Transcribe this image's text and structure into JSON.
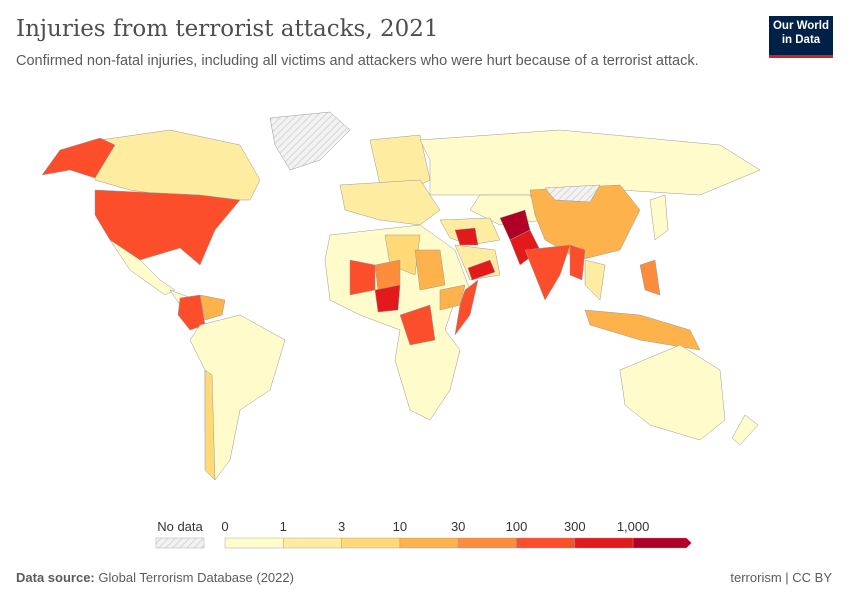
{
  "header": {
    "title": "Injuries from terrorist attacks, 2021",
    "subtitle": "Confirmed non-fatal injuries, including all victims and attackers who were hurt because of a terrorist attack."
  },
  "logo": {
    "line1": "Our World",
    "line2": "in Data"
  },
  "legend": {
    "no_data_label": "No data",
    "ticks": [
      "0",
      "1",
      "3",
      "10",
      "30",
      "100",
      "300",
      "1,000"
    ],
    "colors": [
      "#fffbcb",
      "#feeca0",
      "#fed976",
      "#feb24c",
      "#fd8d3c",
      "#fc4e2a",
      "#e31a1c",
      "#b10026"
    ],
    "no_data_color": "#e8e8e8"
  },
  "footer": {
    "source_label": "Data source:",
    "source": "Global Terrorism Database (2022)",
    "right": "terrorism | CC BY"
  }
}
